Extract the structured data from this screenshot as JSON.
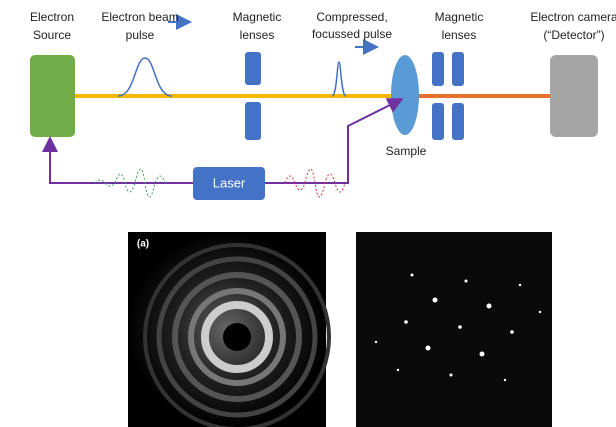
{
  "labels": {
    "source": [
      "Electron",
      "Source"
    ],
    "beam_pulse": [
      "Electron beam",
      "pulse"
    ],
    "lenses_1": [
      "Magnetic",
      "lenses"
    ],
    "compressed": [
      "Compressed,",
      "focussed pulse"
    ],
    "lenses_2": [
      "Magnetic",
      "lenses"
    ],
    "detector": [
      "Electron camera",
      "(“Detector”)"
    ],
    "sample": "Sample",
    "laser": "Laser",
    "panel_a": "(a)"
  }
}
